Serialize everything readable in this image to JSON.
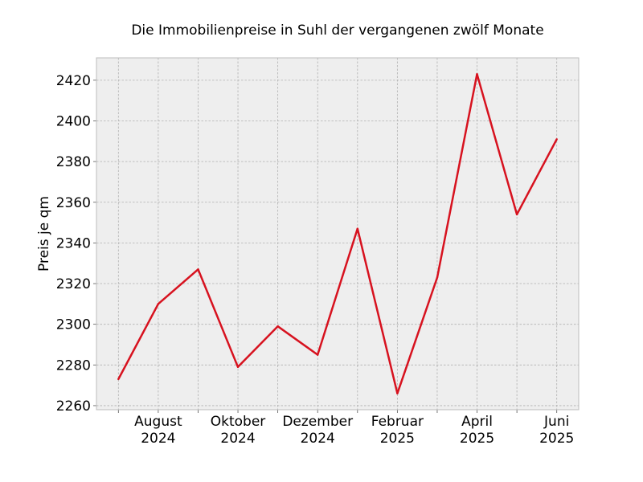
{
  "chart_data": {
    "type": "line",
    "title": "Die Immobilienpreise in Suhl der vergangenen zwölf Monate",
    "xlabel": "",
    "ylabel": "Preis je qm",
    "x": [
      "2024-07",
      "2024-08",
      "2024-09",
      "2024-10",
      "2024-11",
      "2024-12",
      "2025-01",
      "2025-02",
      "2025-03",
      "2025-04",
      "2025-05",
      "2025-06"
    ],
    "series": [
      {
        "values": [
          2273,
          2310,
          2327,
          2279,
          2299,
          2285,
          2347,
          2266,
          2323,
          2423,
          2354,
          2391
        ]
      }
    ],
    "x_tick_labels": [
      {
        "month": "2024-08",
        "lines": [
          "August",
          "2024"
        ]
      },
      {
        "month": "2024-10",
        "lines": [
          "Oktober",
          "2024"
        ]
      },
      {
        "month": "2024-12",
        "lines": [
          "Dezember",
          "2024"
        ]
      },
      {
        "month": "2025-02",
        "lines": [
          "Februar",
          "2025"
        ]
      },
      {
        "month": "2025-04",
        "lines": [
          "April",
          "2025"
        ]
      },
      {
        "month": "2025-06",
        "lines": [
          "Juni",
          "2025"
        ]
      }
    ],
    "yticks": [
      2260,
      2280,
      2300,
      2320,
      2340,
      2360,
      2380,
      2400,
      2420
    ],
    "ylim": [
      2258,
      2431
    ],
    "grid": true,
    "colors": {
      "line": "#d7121f",
      "plot_background": "#eeeeee",
      "grid": "#b0b0b0",
      "frame": "#bcbcbc"
    }
  }
}
